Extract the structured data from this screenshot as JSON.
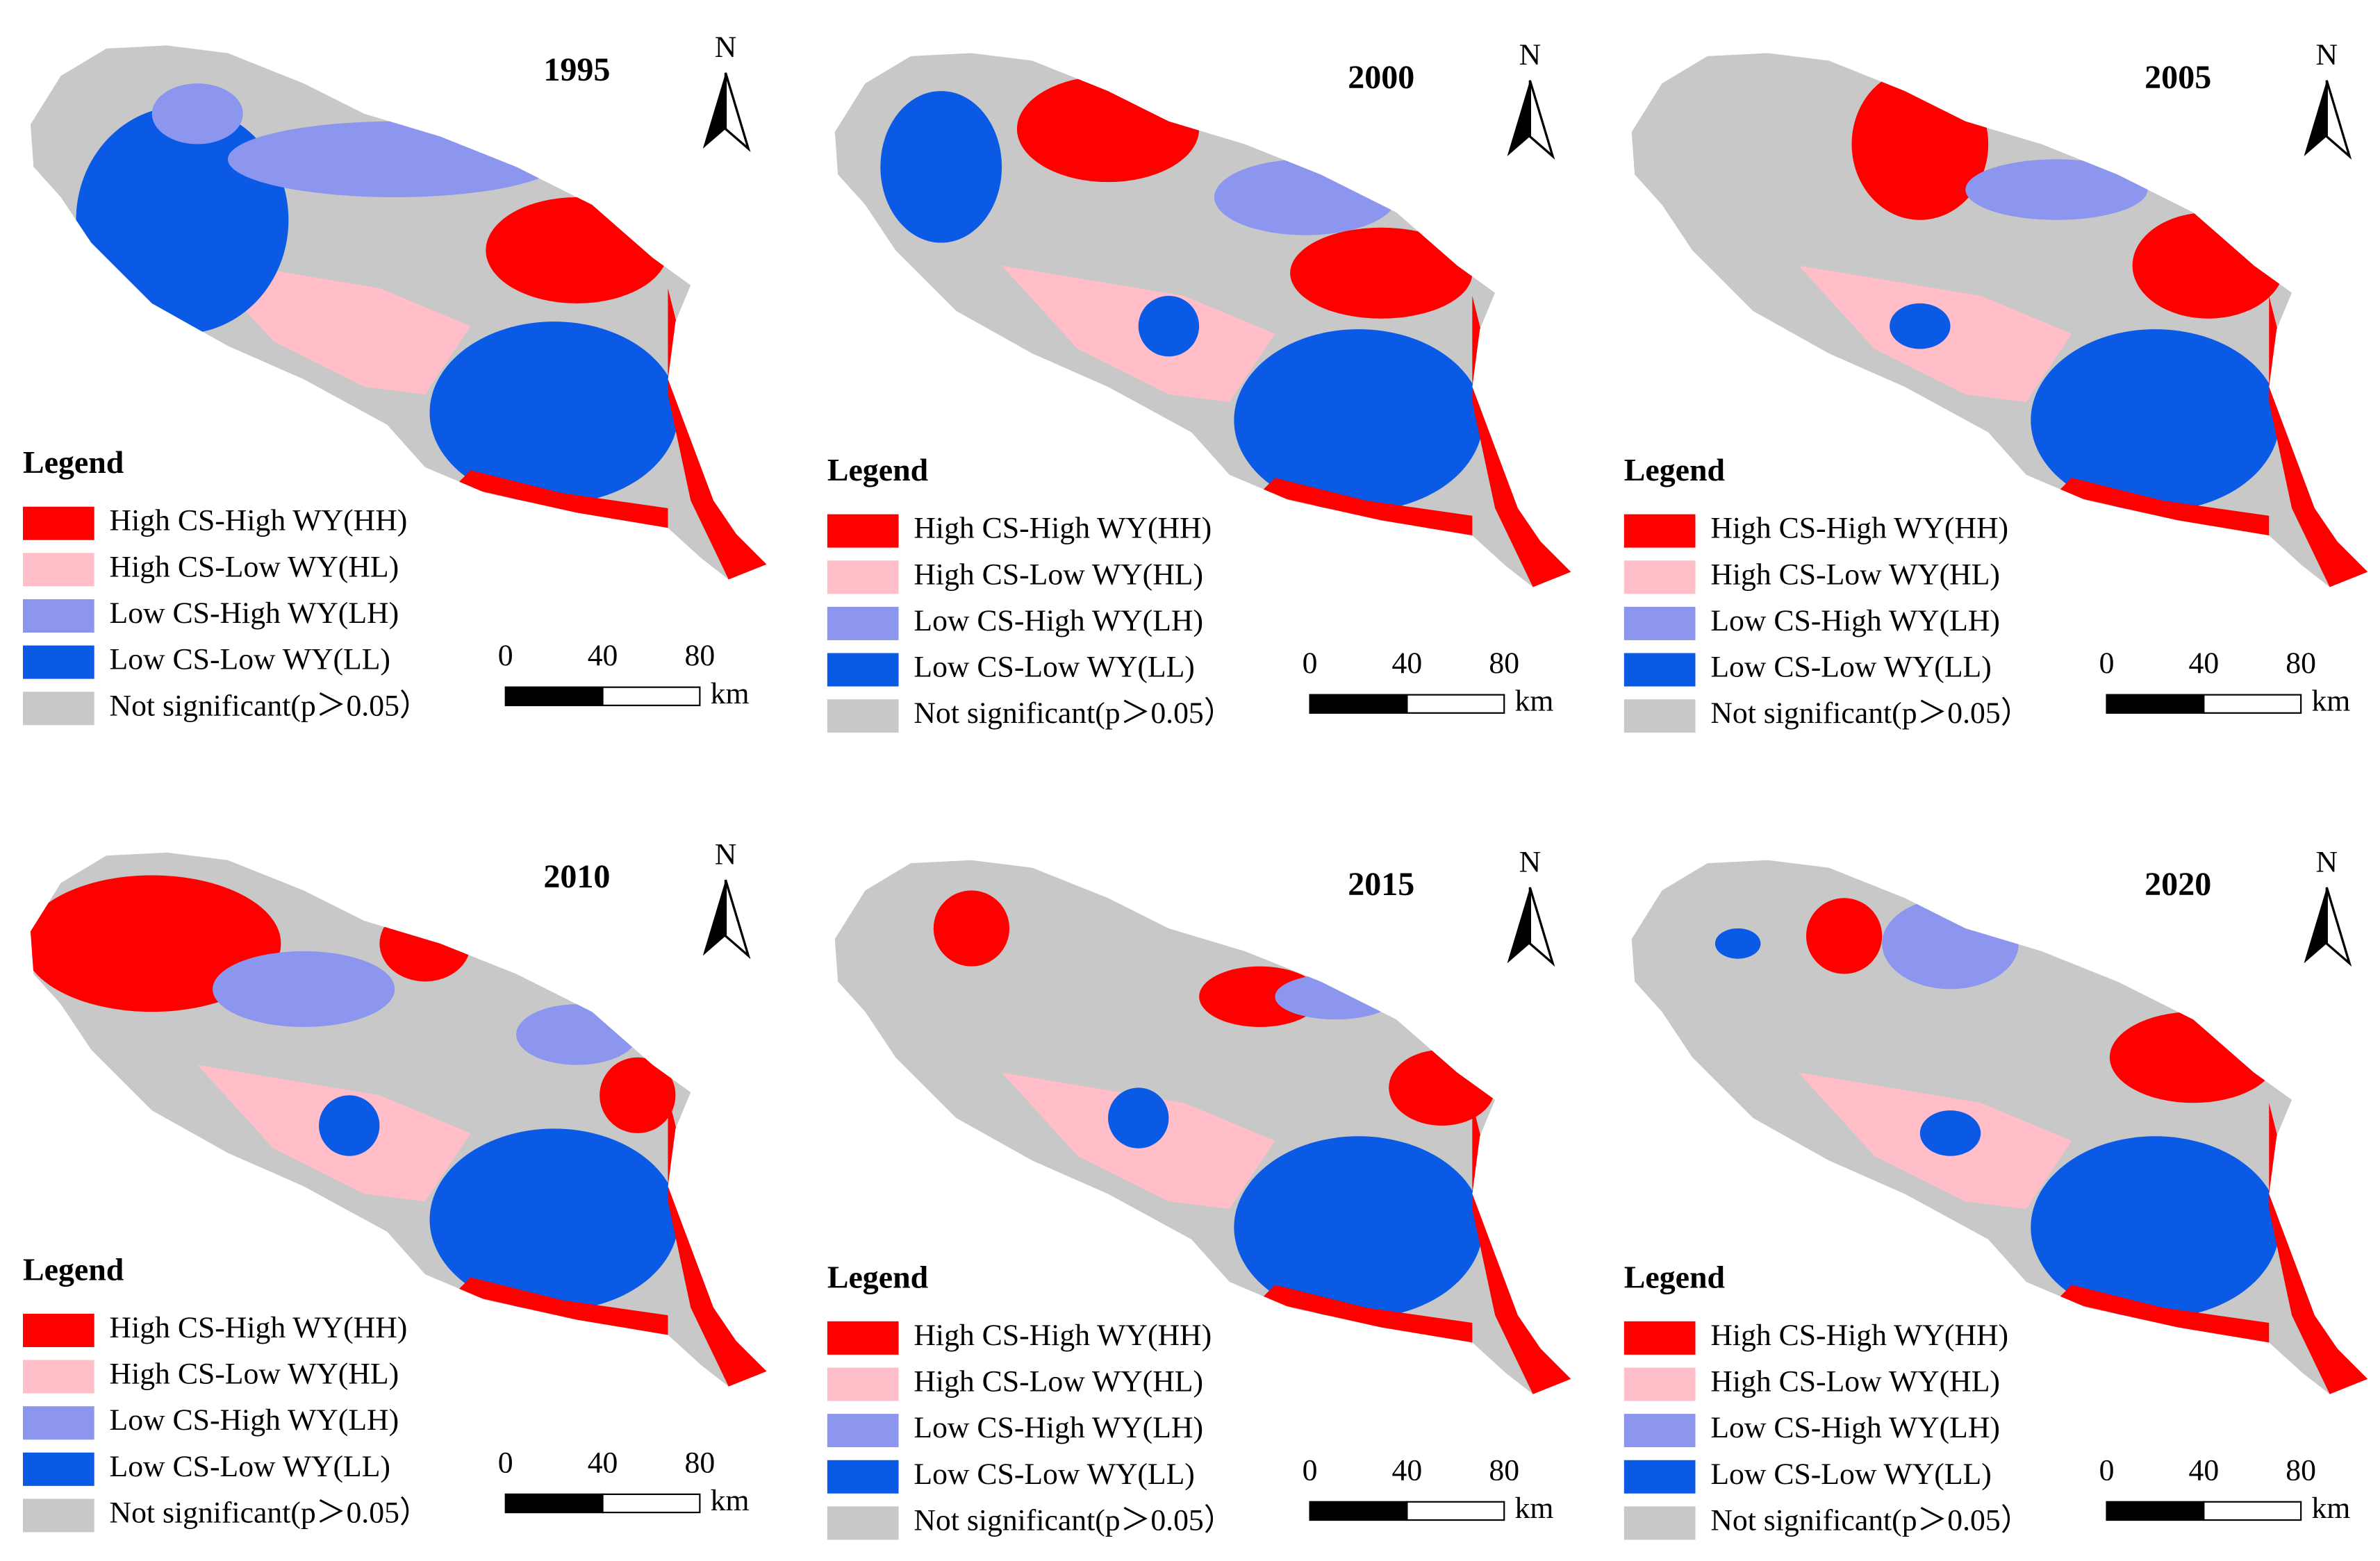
{
  "panels": [
    {
      "year": "1995"
    },
    {
      "year": "2000"
    },
    {
      "year": "2005"
    },
    {
      "year": "2010"
    },
    {
      "year": "2015"
    },
    {
      "year": "2020"
    }
  ],
  "north": "N",
  "legend": {
    "title": "Legend",
    "items": [
      {
        "label": "High CS-High WY(HH)",
        "color": "#ff0000"
      },
      {
        "label": "High CS-Low WY(HL)",
        "color": "#ffbec8"
      },
      {
        "label": "Low CS-High WY(LH)",
        "color": "#8c96ee"
      },
      {
        "label": "Low CS-Low WY(LL)",
        "color": "#0a5ae6"
      },
      {
        "label": "Not significant(p＞0.05）",
        "color": "#c8c8c8"
      }
    ]
  },
  "scale": {
    "ticks": [
      "0",
      "40",
      "80"
    ],
    "unit": "km"
  }
}
